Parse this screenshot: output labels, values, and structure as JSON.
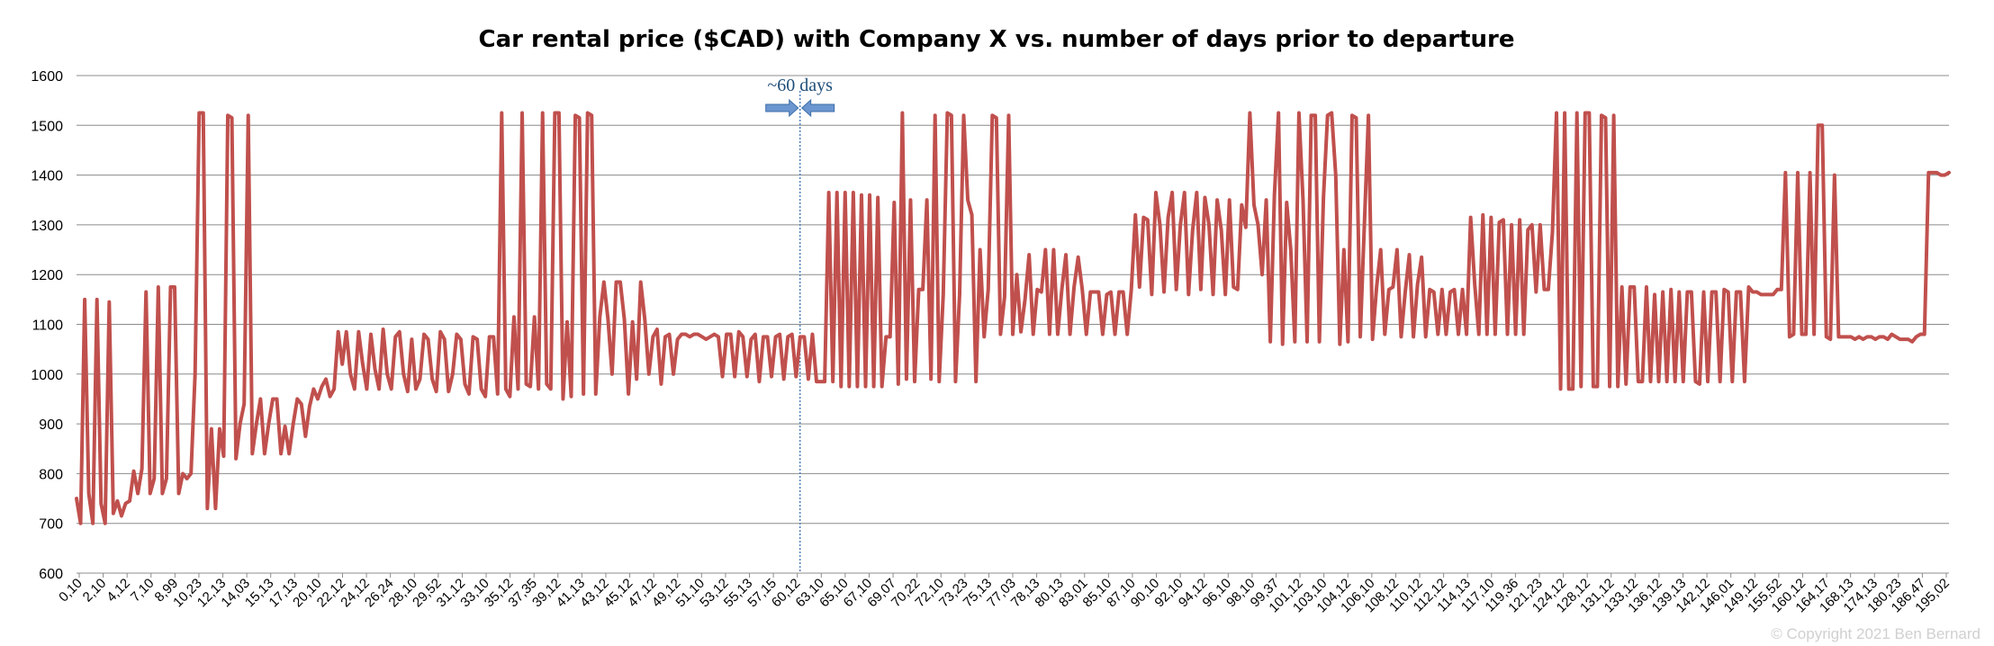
{
  "chart_data": {
    "type": "line",
    "title": "Car rental price ($CAD) with Company X vs. number of days prior to departure",
    "xlabel": "",
    "ylabel": "",
    "ylim": [
      600,
      1600
    ],
    "yticks": [
      600,
      700,
      800,
      900,
      1000,
      1100,
      1200,
      1300,
      1400,
      1500,
      1600
    ],
    "grid": true,
    "legend": "none",
    "x_tick_labels": [
      "0,10",
      "2,10",
      "4,12",
      "7,10",
      "8,99",
      "10,23",
      "12,13",
      "14,03",
      "15,13",
      "17,13",
      "20,10",
      "22,12",
      "24,12",
      "26,24",
      "28,10",
      "29,52",
      "31,12",
      "33,10",
      "35,12",
      "37,35",
      "39,12",
      "41,13",
      "43,12",
      "45,12",
      "47,12",
      "49,12",
      "51,10",
      "53,12",
      "55,13",
      "57,15",
      "60,12",
      "63,10",
      "65,10",
      "67,10",
      "69,07",
      "70,22",
      "72,10",
      "73,23",
      "75,13",
      "77,03",
      "78,13",
      "80,13",
      "83,01",
      "85,10",
      "87,10",
      "90,10",
      "92,10",
      "94,12",
      "96,10",
      "98,10",
      "99,37",
      "101,12",
      "103,10",
      "104,12",
      "106,10",
      "108,12",
      "110,12",
      "112,12",
      "114,13",
      "117,10",
      "119,36",
      "121,23",
      "124,12",
      "128,12",
      "131,12",
      "133,12",
      "136,12",
      "139,13",
      "142,12",
      "146,01",
      "149,12",
      "155,52",
      "160,12",
      "164,17",
      "168,13",
      "174,13",
      "180,23",
      "186,47",
      "195,02"
    ],
    "series": [
      {
        "color": "#c0504d",
        "values": [
          750,
          700,
          1150,
          760,
          700,
          1150,
          740,
          700,
          1145,
          720,
          745,
          715,
          740,
          745,
          805,
          760,
          810,
          1165,
          760,
          790,
          1175,
          760,
          790,
          1175,
          1175,
          760,
          800,
          790,
          800,
          1000,
          1525,
          1525,
          730,
          890,
          730,
          890,
          835,
          1520,
          1515,
          830,
          900,
          940,
          1520,
          840,
          900,
          950,
          840,
          900,
          950,
          950,
          840,
          895,
          840,
          900,
          950,
          940,
          875,
          935,
          970,
          950,
          975,
          990,
          955,
          970,
          1085,
          1020,
          1085,
          1000,
          970,
          1085,
          1020,
          970,
          1080,
          1010,
          970,
          1090,
          1000,
          970,
          1075,
          1085,
          1000,
          965,
          1070,
          970,
          990,
          1080,
          1070,
          990,
          965,
          1085,
          1070,
          965,
          1000,
          1080,
          1070,
          980,
          960,
          1075,
          1070,
          970,
          955,
          1075,
          1075,
          960,
          1525,
          970,
          955,
          1115,
          970,
          1525,
          980,
          975,
          1115,
          970,
          1525,
          980,
          970,
          1525,
          1525,
          950,
          1105,
          955,
          1520,
          1515,
          960,
          1525,
          1520,
          960,
          1115,
          1185,
          1110,
          1000,
          1185,
          1185,
          1110,
          960,
          1105,
          990,
          1185,
          1110,
          1000,
          1075,
          1090,
          980,
          1075,
          1080,
          1000,
          1070,
          1080,
          1080,
          1075,
          1080,
          1080,
          1075,
          1070,
          1075,
          1080,
          1075,
          995,
          1080,
          1080,
          995,
          1085,
          1075,
          995,
          1070,
          1080,
          985,
          1075,
          1075,
          995,
          1075,
          1080,
          990,
          1075,
          1080,
          995,
          1075,
          1075,
          990,
          1080,
          985,
          985,
          985,
          1365,
          985,
          1365,
          975,
          1365,
          975,
          1365,
          975,
          1360,
          975,
          1360,
          975,
          1355,
          975,
          1075,
          1075,
          1345,
          980,
          1525,
          990,
          1350,
          985,
          1170,
          1170,
          1350,
          990,
          1520,
          985,
          1160,
          1525,
          1520,
          985,
          1160,
          1520,
          1350,
          1320,
          985,
          1250,
          1075,
          1170,
          1520,
          1515,
          1080,
          1155,
          1520,
          1080,
          1200,
          1085,
          1150,
          1240,
          1080,
          1170,
          1165,
          1250,
          1080,
          1250,
          1080,
          1170,
          1240,
          1080,
          1175,
          1235,
          1170,
          1080,
          1165,
          1165,
          1165,
          1080,
          1160,
          1165,
          1080,
          1165,
          1165,
          1080,
          1170,
          1320,
          1175,
          1315,
          1310,
          1160,
          1365,
          1300,
          1165,
          1315,
          1365,
          1170,
          1300,
          1365,
          1160,
          1290,
          1365,
          1170,
          1355,
          1300,
          1160,
          1350,
          1290,
          1160,
          1350,
          1175,
          1170,
          1340,
          1295,
          1525,
          1340,
          1300,
          1200,
          1350,
          1065,
          1360,
          1525,
          1060,
          1345,
          1250,
          1065,
          1525,
          1350,
          1065,
          1520,
          1520,
          1065,
          1355,
          1520,
          1525,
          1400,
          1060,
          1250,
          1065,
          1520,
          1515,
          1075,
          1300,
          1520,
          1070,
          1175,
          1250,
          1080,
          1170,
          1175,
          1250,
          1075,
          1165,
          1240,
          1075,
          1180,
          1235,
          1075,
          1170,
          1165,
          1080,
          1170,
          1080,
          1165,
          1170,
          1080,
          1170,
          1080,
          1315,
          1180,
          1080,
          1320,
          1080,
          1315,
          1080,
          1305,
          1310,
          1080,
          1300,
          1080,
          1310,
          1080,
          1290,
          1300,
          1165,
          1300,
          1170,
          1170,
          1285,
          1525,
          970,
          1525,
          970,
          970,
          1525,
          975,
          1525,
          1525,
          975,
          975,
          1520,
          1515,
          975,
          1520,
          975,
          1175,
          980,
          1175,
          1175,
          985,
          985,
          1175,
          985,
          1160,
          985,
          1165,
          985,
          1170,
          985,
          1165,
          985,
          1165,
          1165,
          985,
          980,
          1165,
          985,
          1165,
          1165,
          985,
          1170,
          1165,
          985,
          1165,
          1165,
          985,
          1175,
          1165,
          1165,
          1160,
          1160,
          1160,
          1160,
          1170,
          1170,
          1405,
          1075,
          1080,
          1405,
          1080,
          1080,
          1405,
          1080,
          1500,
          1500,
          1075,
          1070,
          1400,
          1075,
          1075,
          1075,
          1075,
          1070,
          1075,
          1070,
          1075,
          1075,
          1070,
          1075,
          1075,
          1070,
          1080,
          1075,
          1070,
          1070,
          1070,
          1065,
          1075,
          1080,
          1080,
          1405,
          1405,
          1405,
          1400,
          1400,
          1405
        ]
      }
    ],
    "annotations": [
      {
        "text": "~60 days",
        "x_label": "60,12"
      }
    ]
  },
  "copyright": "© Copyright 2021 Ben Bernard"
}
